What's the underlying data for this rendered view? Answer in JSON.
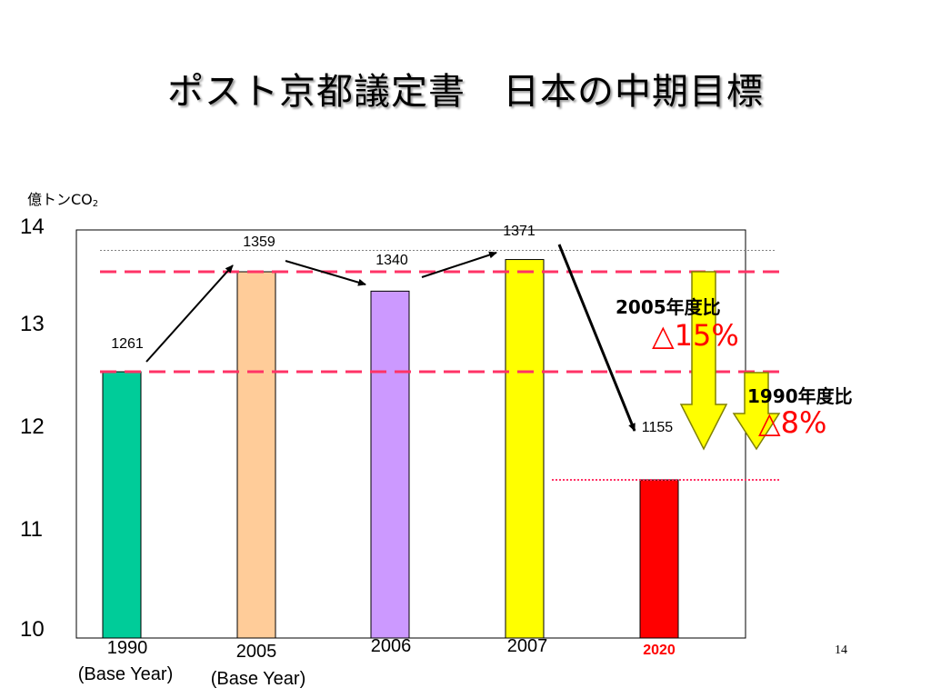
{
  "title": "ポスト京都議定書　日本の中期目標",
  "unit_label": {
    "text": "億トンCO",
    "sub": "2"
  },
  "chart_data": {
    "type": "bar",
    "ylim": [
      10,
      14
    ],
    "yticks": [
      "14",
      "13",
      "12",
      "11",
      "10"
    ],
    "categories": [
      "1990",
      "2005",
      "2006",
      "2007",
      "2020"
    ],
    "category_sublabels": [
      "(Base Year)",
      "(Base Year)",
      "",
      "",
      ""
    ],
    "values": [
      1261,
      1359,
      1340,
      1371,
      1155
    ],
    "value_labels": [
      "1261",
      "1359",
      "1340",
      "1371",
      "1155"
    ],
    "bar_colors": [
      "#00cc99",
      "#ffcc99",
      "#cc99ff",
      "#ffff00",
      "#ff0000"
    ],
    "highlight_category": "2020",
    "reference_lines": [
      {
        "value": 1359,
        "style": "dashed",
        "color": "#ff3366"
      },
      {
        "value": 1261,
        "style": "dashed",
        "color": "#ff3366"
      },
      {
        "value": 1155,
        "style": "dotted",
        "color": "#ff3366"
      },
      {
        "value": 1380,
        "style": "dotted",
        "color": "#808080"
      }
    ],
    "grid": false
  },
  "annotations": [
    {
      "label": "2005年度比",
      "value": "△15%"
    },
    {
      "label": "1990年度比",
      "value": "△8%"
    }
  ],
  "page_number": "14",
  "colors": {
    "reduction_arrow": "#ffff00",
    "reduction_arrow_stroke": "#808000",
    "label_red": "#ff0000"
  }
}
